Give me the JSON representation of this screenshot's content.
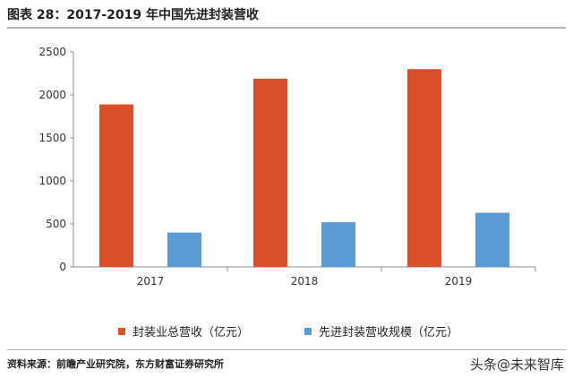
{
  "header": {
    "title": "图表 28：2017-2019 年中国先进封装营收"
  },
  "footer": {
    "source": "资料来源：前瞻产业研究院，东方财富证券研究所",
    "watermark": "头条@未来智库"
  },
  "colors": {
    "series_1": "#d9502b",
    "series_2": "#5b9bd5",
    "axis": "#8c8c8c"
  },
  "chart_data": {
    "type": "bar",
    "categories": [
      "2017",
      "2018",
      "2019"
    ],
    "series": [
      {
        "name": "封装业总营收（亿元）",
        "values": [
          1890,
          2190,
          2300
        ]
      },
      {
        "name": "先进封装营收规模（亿元）",
        "values": [
          400,
          520,
          630
        ]
      }
    ],
    "y_ticks": [
      "0",
      "500",
      "1000",
      "1500",
      "2000",
      "2500"
    ],
    "ylim": [
      0,
      2500
    ],
    "grid": false,
    "legend_position": "bottom"
  }
}
